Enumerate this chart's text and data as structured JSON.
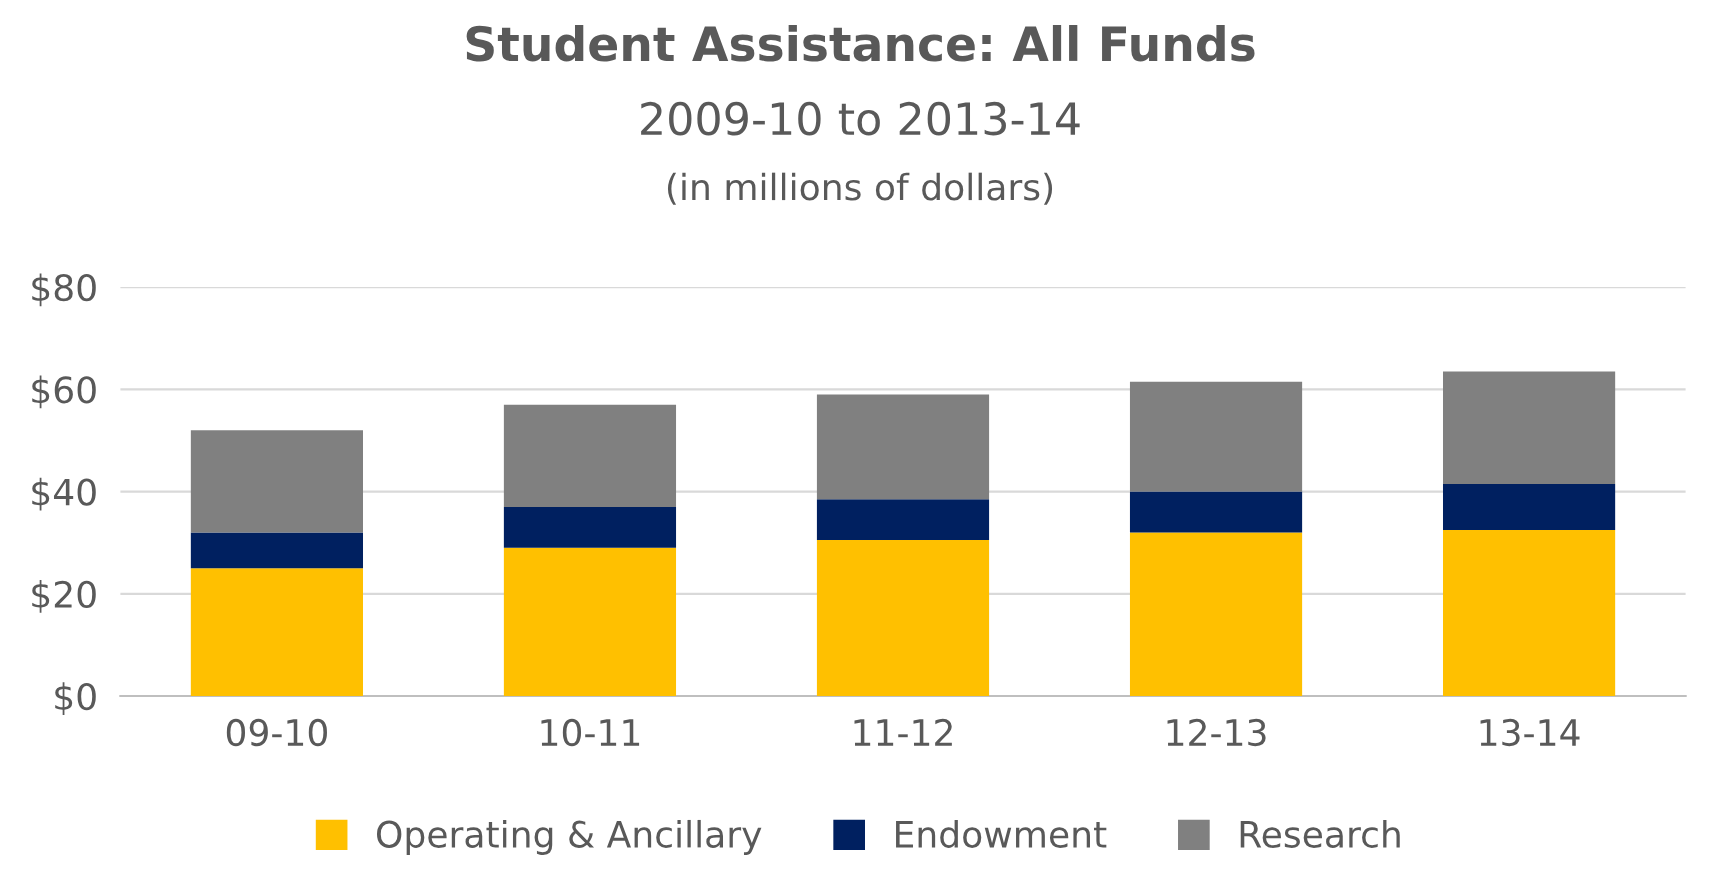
{
  "chart_data": {
    "type": "bar",
    "title": "Student Assistance: All Funds",
    "subtitle": "2009-10 to 2013-14",
    "annotations": [
      "(in millions of dollars)"
    ],
    "categories": [
      "09-10",
      "10-11",
      "11-12",
      "12-13",
      "13-14"
    ],
    "stacked": true,
    "series": [
      {
        "name": "Operating & Ancillary",
        "color": "#ffc000",
        "values": [
          25,
          29,
          30.5,
          32,
          32.5
        ]
      },
      {
        "name": "Endowment",
        "color": "#002060",
        "values": [
          7,
          8,
          8,
          8,
          9
        ]
      },
      {
        "name": "Research",
        "color": "#808080",
        "values": [
          20,
          20,
          20.5,
          21.5,
          22
        ]
      }
    ],
    "ylim": [
      0,
      80
    ],
    "yticks": [
      {
        "value": 0,
        "label": "$0"
      },
      {
        "value": 20,
        "label": "$20"
      },
      {
        "value": 40,
        "label": "$40"
      },
      {
        "value": 60,
        "label": "$60"
      },
      {
        "value": 80,
        "label": "$80"
      }
    ],
    "grid": "y",
    "legend": "bottom"
  }
}
